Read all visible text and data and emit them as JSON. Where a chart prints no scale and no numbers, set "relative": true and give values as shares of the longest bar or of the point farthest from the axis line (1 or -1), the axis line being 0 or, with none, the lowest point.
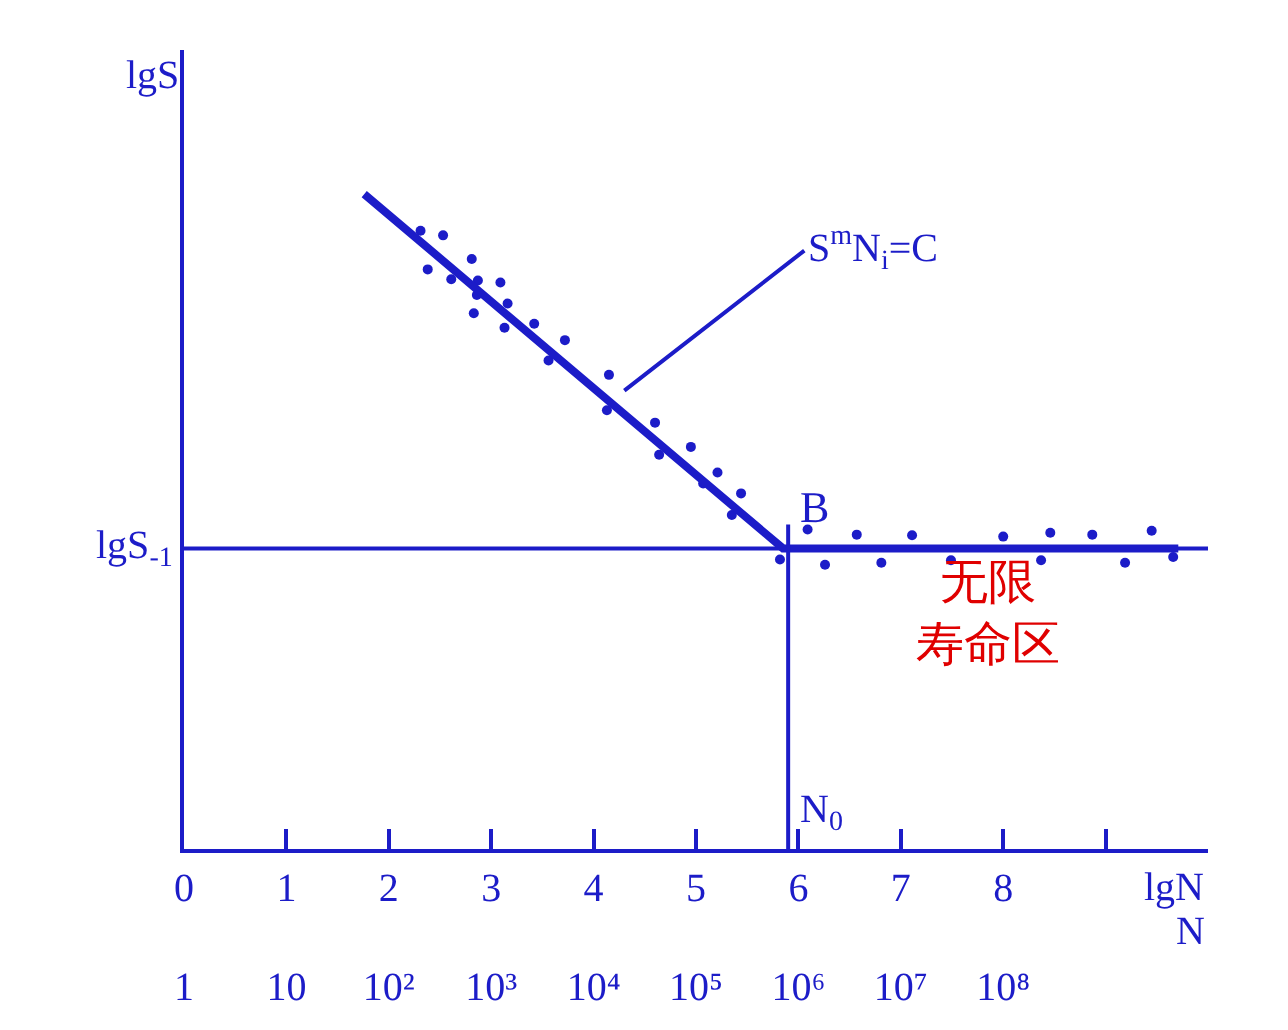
{
  "chart_data": {
    "type": "scatter",
    "relative": true,
    "xlabel": "lgN",
    "ylabel": "lgS",
    "x2label": "N",
    "xlim": [
      0,
      10
    ],
    "xticks": [
      0,
      1,
      2,
      3,
      4,
      5,
      6,
      7,
      8,
      {
        "value": 9,
        "label": null
      }
    ],
    "log": "x2",
    "x2lim": [
      1,
      10000000000
    ],
    "x2ticks": [
      1,
      10,
      {
        "value": 100,
        "label": "10²"
      },
      {
        "value": 1000,
        "label": "10³"
      },
      {
        "value": 10000,
        "label": "10⁴"
      },
      {
        "value": 100000,
        "label": "10⁵"
      },
      {
        "value": 1000000,
        "label": "10⁶"
      },
      {
        "value": 10000000,
        "label": "10⁷"
      },
      {
        "value": 100000000,
        "label": "10⁸"
      }
    ],
    "series": [
      {
        "color": "#1c1cc8",
        "marker": "circle",
        "x": [
          2.31,
          2.53,
          2.38,
          2.81,
          2.61,
          2.87,
          3.09,
          2.86,
          3.16,
          2.83,
          3.13,
          3.42,
          3.72,
          3.56,
          4.15,
          4.13,
          4.6,
          4.64,
          4.95,
          5.21,
          5.07,
          5.44,
          5.35,
          5.82,
          6.09,
          6.26,
          6.57,
          6.81,
          7.11,
          7.49,
          8.0,
          8.37,
          8.46,
          8.87,
          9.19,
          9.45,
          9.66
        ],
        "values": [
          0.944,
          0.937,
          0.885,
          0.901,
          0.87,
          0.868,
          0.865,
          0.846,
          0.833,
          0.818,
          0.796,
          0.802,
          0.777,
          0.746,
          0.724,
          0.67,
          0.651,
          0.602,
          0.614,
          0.575,
          0.558,
          0.543,
          0.51,
          0.442,
          0.488,
          0.434,
          0.48,
          0.437,
          0.479,
          0.441,
          0.477,
          0.441,
          0.483,
          0.48,
          0.437,
          0.486,
          0.446
        ]
      },
      {
        "type": "line",
        "color": "#1c1cc8",
        "marker": "none",
        "line_style": "solid",
        "x": [
          1.76,
          5.85,
          9.71
        ],
        "values": [
          1,
          0.459,
          0.459
        ]
      }
    ],
    "ref_lines": [
      {
        "axis": "y",
        "value": 0.459,
        "label": "lgS$_{-1}$"
      },
      {
        "axis": "x",
        "value": 5.9,
        "label": "N$_{0}$"
      }
    ],
    "annotations": [
      "S$^{m}$N$_{i}$=C",
      {
        "text": "B",
        "x": 5.85,
        "y": 0.459
      },
      "无限寿命区"
    ]
  }
}
